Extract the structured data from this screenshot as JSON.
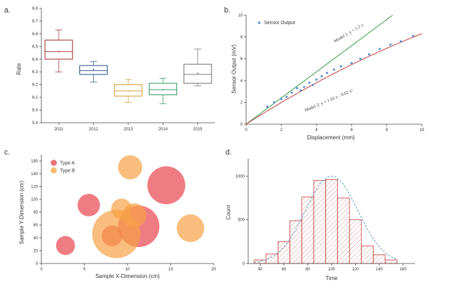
{
  "chart_data": [
    {
      "panel": "a.",
      "type": "box",
      "ylabel": "Rate",
      "ylim": [
        5.9,
        6.8
      ],
      "yticks": [
        "5.9",
        "6.0",
        "6.1",
        "6.2",
        "6.3",
        "6.4",
        "6.5",
        "6.6",
        "6.7",
        "6.8"
      ],
      "categories": [
        "2011",
        "2012",
        "2013",
        "2014",
        "2015"
      ],
      "colors": [
        "#a8383a",
        "#3a5a88",
        "#d4a13a",
        "#3e9c63",
        "#7a7a7a"
      ],
      "boxes": [
        {
          "min": 6.3,
          "q1": 6.4,
          "median": 6.46,
          "q3": 6.55,
          "max": 6.63
        },
        {
          "min": 6.22,
          "q1": 6.28,
          "median": 6.31,
          "q3": 6.35,
          "max": 6.38
        },
        {
          "min": 6.06,
          "q1": 6.11,
          "median": 6.15,
          "q3": 6.2,
          "max": 6.24
        },
        {
          "min": 6.05,
          "q1": 6.12,
          "median": 6.16,
          "q3": 6.21,
          "max": 6.25
        },
        {
          "min": 6.19,
          "q1": 6.21,
          "median": 6.28,
          "q3": 6.36,
          "max": 6.48
        }
      ],
      "means": [
        6.46,
        6.32,
        6.15,
        6.16,
        6.29
      ]
    },
    {
      "panel": "b.",
      "type": "scatter",
      "xlabel": "Displacement (mm)",
      "ylabel": "Sensor Output (mV)",
      "xlim": [
        0,
        10
      ],
      "ylim": [
        0,
        10
      ],
      "xticks": [
        "0",
        "2",
        "4",
        "6",
        "8",
        "10"
      ],
      "yticks": [
        "0",
        "2",
        "4",
        "6",
        "8",
        "10"
      ],
      "legend": "Sensor Output",
      "points_x": [
        1.2,
        1.6,
        2.0,
        2.3,
        2.6,
        2.9,
        3.1,
        3.3,
        3.6,
        3.8,
        4.0,
        4.3,
        4.6,
        5.0,
        5.4,
        6.0,
        6.5,
        7.0,
        7.6,
        8.2,
        8.8,
        9.5
      ],
      "points_y": [
        1.6,
        2.0,
        2.3,
        2.5,
        2.9,
        3.3,
        3.1,
        3.4,
        3.8,
        3.6,
        4.1,
        4.4,
        4.7,
        5.0,
        5.3,
        5.6,
        6.0,
        6.4,
        6.9,
        7.3,
        7.6,
        8.1
      ],
      "model1": {
        "label": "Model 1: y = 1.2 x",
        "slope": 1.2,
        "color": "#2e9a3e"
      },
      "model2": {
        "label": "Model 2: y = 1.03 x - 0.02 x²",
        "a": 1.03,
        "b": -0.02,
        "color": "#c23b3b"
      },
      "point_color": "#5a8fd0"
    },
    {
      "panel": "c.",
      "type": "bubble",
      "xlabel": "Sample X-Dimension (cm)",
      "ylabel": "Sample Y-Dimension (cm)",
      "xlim": [
        0,
        20
      ],
      "ylim": [
        0,
        170
      ],
      "xticks": [
        "0",
        "5",
        "10",
        "15",
        "20"
      ],
      "yticks": [
        "0",
        "20",
        "40",
        "60",
        "80",
        "100",
        "120",
        "140",
        "160"
      ],
      "series": [
        {
          "name": "Type A",
          "color": "#e8454f",
          "x": [
            2.8,
            5.5,
            14.5,
            11.3,
            8.2
          ],
          "y": [
            28,
            91,
            122,
            58,
            43
          ],
          "r": [
            1.1,
            1.3,
            2.2,
            2.4,
            1.2
          ]
        },
        {
          "name": "Type B",
          "color": "#f6a146",
          "x": [
            10.3,
            17.3,
            8.7,
            9.3,
            10.8
          ],
          "y": [
            150,
            55,
            46,
            85,
            75
          ],
          "r": [
            1.4,
            1.6,
            2.8,
            1.2,
            1.4
          ]
        }
      ]
    },
    {
      "panel": "d.",
      "type": "histogram",
      "xlabel": "Time",
      "ylabel": "Count",
      "xlim": [
        30,
        170
      ],
      "ylim": [
        0,
        1200
      ],
      "xticks": [
        "40",
        "60",
        "80",
        "100",
        "120",
        "140",
        "160"
      ],
      "yticks": [
        "0",
        "500",
        "1000"
      ],
      "bin_start": 35,
      "bin_width": 10,
      "counts": [
        40,
        110,
        250,
        490,
        760,
        950,
        960,
        750,
        500,
        200,
        100,
        40
      ],
      "bar_color": "#c23b3b",
      "curve_color": "#5a9fc0"
    }
  ]
}
